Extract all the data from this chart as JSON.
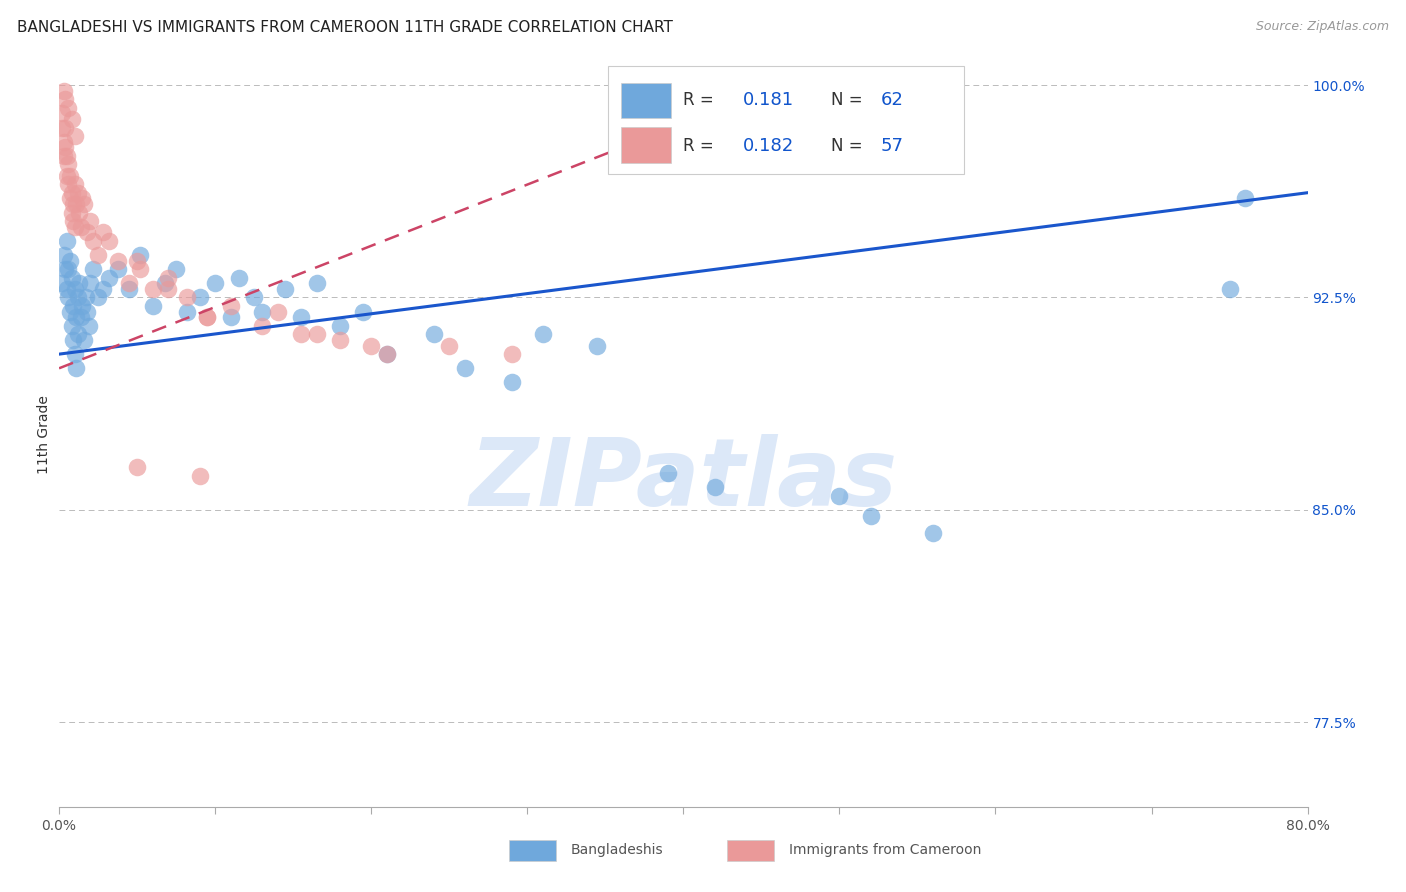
{
  "title": "BANGLADESHI VS IMMIGRANTS FROM CAMEROON 11TH GRADE CORRELATION CHART",
  "source": "Source: ZipAtlas.com",
  "ylabel": "11th Grade",
  "watermark": "ZIPatlas",
  "xlim": [
    0.0,
    0.8
  ],
  "ylim": [
    0.745,
    1.008
  ],
  "xticks": [
    0.0,
    0.1,
    0.2,
    0.3,
    0.4,
    0.5,
    0.6,
    0.7,
    0.8
  ],
  "xticklabels": [
    "0.0%",
    "",
    "",
    "",
    "",
    "",
    "",
    "",
    "80.0%"
  ],
  "yticks_right": [
    0.775,
    0.85,
    0.925,
    1.0
  ],
  "yticklabels_right": [
    "77.5%",
    "85.0%",
    "92.5%",
    "100.0%"
  ],
  "blue_color": "#6fa8dc",
  "pink_color": "#ea9999",
  "trend_blue": "#1a56cc",
  "trend_pink": "#cc4466",
  "background_color": "#ffffff",
  "grid_color": "#bbbbbb",
  "blue_scatter_x": [
    0.002,
    0.003,
    0.004,
    0.005,
    0.005,
    0.006,
    0.006,
    0.007,
    0.007,
    0.008,
    0.008,
    0.009,
    0.009,
    0.01,
    0.01,
    0.011,
    0.011,
    0.012,
    0.012,
    0.013,
    0.014,
    0.015,
    0.016,
    0.017,
    0.018,
    0.019,
    0.02,
    0.022,
    0.025,
    0.028,
    0.032,
    0.038,
    0.045,
    0.052,
    0.06,
    0.068,
    0.075,
    0.082,
    0.09,
    0.1,
    0.11,
    0.115,
    0.125,
    0.13,
    0.145,
    0.155,
    0.165,
    0.18,
    0.195,
    0.21,
    0.24,
    0.26,
    0.29,
    0.31,
    0.345,
    0.5,
    0.52,
    0.56,
    0.75,
    0.76,
    0.39,
    0.42
  ],
  "blue_scatter_y": [
    0.93,
    0.94,
    0.935,
    0.945,
    0.928,
    0.935,
    0.925,
    0.938,
    0.92,
    0.932,
    0.915,
    0.922,
    0.91,
    0.928,
    0.905,
    0.918,
    0.9,
    0.925,
    0.912,
    0.93,
    0.918,
    0.922,
    0.91,
    0.925,
    0.92,
    0.915,
    0.93,
    0.935,
    0.925,
    0.928,
    0.932,
    0.935,
    0.928,
    0.94,
    0.922,
    0.93,
    0.935,
    0.92,
    0.925,
    0.93,
    0.918,
    0.932,
    0.925,
    0.92,
    0.928,
    0.918,
    0.93,
    0.915,
    0.92,
    0.905,
    0.912,
    0.9,
    0.895,
    0.912,
    0.908,
    0.855,
    0.848,
    0.842,
    0.928,
    0.96,
    0.863,
    0.858
  ],
  "pink_scatter_x": [
    0.002,
    0.002,
    0.003,
    0.003,
    0.004,
    0.004,
    0.005,
    0.005,
    0.006,
    0.006,
    0.007,
    0.007,
    0.008,
    0.008,
    0.009,
    0.009,
    0.01,
    0.01,
    0.011,
    0.012,
    0.013,
    0.014,
    0.015,
    0.016,
    0.018,
    0.02,
    0.022,
    0.025,
    0.028,
    0.032,
    0.038,
    0.045,
    0.052,
    0.06,
    0.07,
    0.082,
    0.095,
    0.11,
    0.13,
    0.155,
    0.18,
    0.21,
    0.25,
    0.05,
    0.07,
    0.095,
    0.29,
    0.14,
    0.165,
    0.2,
    0.003,
    0.004,
    0.006,
    0.008,
    0.01,
    0.05,
    0.09
  ],
  "pink_scatter_y": [
    0.99,
    0.985,
    0.98,
    0.975,
    0.985,
    0.978,
    0.975,
    0.968,
    0.972,
    0.965,
    0.968,
    0.96,
    0.962,
    0.955,
    0.958,
    0.952,
    0.965,
    0.95,
    0.958,
    0.962,
    0.955,
    0.95,
    0.96,
    0.958,
    0.948,
    0.952,
    0.945,
    0.94,
    0.948,
    0.945,
    0.938,
    0.93,
    0.935,
    0.928,
    0.932,
    0.925,
    0.918,
    0.922,
    0.915,
    0.912,
    0.91,
    0.905,
    0.908,
    0.938,
    0.928,
    0.918,
    0.905,
    0.92,
    0.912,
    0.908,
    0.998,
    0.995,
    0.992,
    0.988,
    0.982,
    0.865,
    0.862
  ],
  "blue_trend_x": [
    0.0,
    0.8
  ],
  "blue_trend_y": [
    0.905,
    0.962
  ],
  "pink_trend_x": [
    0.0,
    0.37
  ],
  "pink_trend_y": [
    0.9,
    0.98
  ],
  "title_fontsize": 11,
  "tick_fontsize": 10,
  "axis_label_fontsize": 10
}
